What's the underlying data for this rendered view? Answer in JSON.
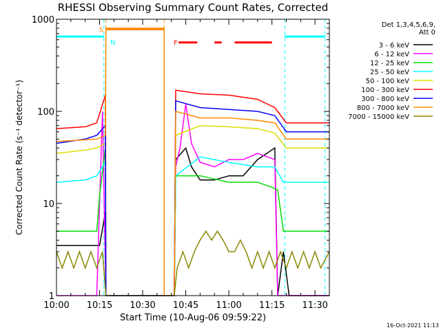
{
  "chart_data": {
    "type": "line",
    "title": "RHESSI Observing Summary Count Rates, Corrected",
    "xlabel": "Start Time (10-Aug-06 09:59:22)",
    "ylabel": "Corrected Count Rate (s⁻¹ detector⁻¹)",
    "y_scale": "log",
    "ylim": [
      1,
      1000
    ],
    "xlim_minutes": [
      0,
      95
    ],
    "x_ticks": [
      {
        "t": 0,
        "label": "10:00"
      },
      {
        "t": 15,
        "label": "10:15"
      },
      {
        "t": 30,
        "label": "10:30"
      },
      {
        "t": 45,
        "label": "10:45"
      },
      {
        "t": 60,
        "label": "11:00"
      },
      {
        "t": 75,
        "label": "11:15"
      },
      {
        "t": 90,
        "label": "11:30"
      }
    ],
    "y_ticks": [
      {
        "v": 1,
        "label": "1"
      },
      {
        "v": 10,
        "label": "10"
      },
      {
        "v": 100,
        "label": "100"
      },
      {
        "v": 1000,
        "label": "1000"
      }
    ],
    "legend_header": [
      "Det 1,3,4,5,6,9,",
      "Att 0"
    ],
    "series": [
      {
        "name": "3 - 6 keV",
        "color": "#000000",
        "points": [
          [
            0,
            3.5
          ],
          [
            15,
            3.5
          ],
          [
            17,
            8
          ],
          [
            17.2,
            1
          ],
          [
            41,
            1
          ],
          [
            41.5,
            30
          ],
          [
            45,
            40
          ],
          [
            47,
            25
          ],
          [
            50,
            18
          ],
          [
            55,
            18
          ],
          [
            60,
            20
          ],
          [
            65,
            20
          ],
          [
            70,
            30
          ],
          [
            76,
            40
          ],
          [
            77,
            1
          ],
          [
            79,
            3
          ],
          [
            81,
            1
          ],
          [
            95,
            1
          ]
        ]
      },
      {
        "name": "6 - 12 keV",
        "color": "#ff00ff",
        "points": [
          [
            0,
            1
          ],
          [
            14,
            1
          ],
          [
            16,
            100
          ],
          [
            17.2,
            1
          ],
          [
            41,
            1
          ],
          [
            41.5,
            25
          ],
          [
            43,
            40
          ],
          [
            45,
            120
          ],
          [
            47,
            45
          ],
          [
            50,
            28
          ],
          [
            55,
            25
          ],
          [
            60,
            30
          ],
          [
            65,
            30
          ],
          [
            70,
            35
          ],
          [
            76,
            30
          ],
          [
            77,
            1
          ],
          [
            95,
            1
          ]
        ]
      },
      {
        "name": "12 - 25 keV",
        "color": "#00dd00",
        "points": [
          [
            0,
            5
          ],
          [
            14,
            5
          ],
          [
            15,
            12
          ],
          [
            17,
            40
          ],
          [
            17.2,
            1
          ],
          [
            41,
            1
          ],
          [
            41.5,
            20
          ],
          [
            50,
            20
          ],
          [
            60,
            17
          ],
          [
            70,
            17
          ],
          [
            75,
            15
          ],
          [
            77,
            14
          ],
          [
            79,
            5
          ],
          [
            95,
            5
          ]
        ]
      },
      {
        "name": "25 - 50 keV",
        "color": "#00ffff",
        "points": [
          [
            0,
            17
          ],
          [
            10,
            18
          ],
          [
            14,
            20
          ],
          [
            17,
            28
          ],
          [
            17.2,
            1
          ],
          [
            41,
            1
          ],
          [
            41.5,
            20
          ],
          [
            50,
            32
          ],
          [
            60,
            28
          ],
          [
            70,
            25
          ],
          [
            76,
            25
          ],
          [
            79,
            17
          ],
          [
            95,
            17
          ]
        ]
      },
      {
        "name": "50 - 100 keV",
        "color": "#dddd00",
        "points": [
          [
            0,
            35
          ],
          [
            10,
            38
          ],
          [
            14,
            40
          ],
          [
            17,
            45
          ],
          [
            17.2,
            1
          ],
          [
            41,
            1
          ],
          [
            41.5,
            55
          ],
          [
            50,
            70
          ],
          [
            60,
            68
          ],
          [
            70,
            65
          ],
          [
            76,
            58
          ],
          [
            80,
            40
          ],
          [
            95,
            40
          ]
        ]
      },
      {
        "name": "100 - 300 keV",
        "color": "#ff0000",
        "points": [
          [
            0,
            65
          ],
          [
            10,
            68
          ],
          [
            14,
            75
          ],
          [
            17,
            150
          ],
          [
            17.2,
            1
          ],
          [
            41,
            1
          ],
          [
            41.5,
            170
          ],
          [
            50,
            155
          ],
          [
            60,
            150
          ],
          [
            70,
            135
          ],
          [
            76,
            110
          ],
          [
            80,
            75
          ],
          [
            95,
            75
          ]
        ]
      },
      {
        "name": "300 - 800 keV",
        "color": "#0000ff",
        "points": [
          [
            0,
            45
          ],
          [
            10,
            50
          ],
          [
            14,
            55
          ],
          [
            17,
            70
          ],
          [
            17.2,
            1
          ],
          [
            41,
            1
          ],
          [
            41.5,
            130
          ],
          [
            50,
            110
          ],
          [
            60,
            105
          ],
          [
            70,
            100
          ],
          [
            76,
            90
          ],
          [
            80,
            60
          ],
          [
            95,
            60
          ]
        ]
      },
      {
        "name": "800 - 7000 keV",
        "color": "#ff8800",
        "points": [
          [
            0,
            47
          ],
          [
            14,
            50
          ],
          [
            17,
            55
          ],
          [
            17.2,
            800
          ],
          [
            37.5,
            800
          ],
          [
            37.5,
            1
          ],
          [
            41,
            1
          ],
          [
            41.5,
            100
          ],
          [
            50,
            85
          ],
          [
            60,
            85
          ],
          [
            70,
            80
          ],
          [
            76,
            75
          ],
          [
            80,
            50
          ],
          [
            95,
            50
          ]
        ]
      },
      {
        "name": "7000 - 15000 keV",
        "color": "#888800",
        "points": [
          [
            0,
            3
          ],
          [
            2,
            2
          ],
          [
            4,
            3
          ],
          [
            6,
            2
          ],
          [
            8,
            3
          ],
          [
            10,
            2
          ],
          [
            12,
            3
          ],
          [
            14,
            2
          ],
          [
            16,
            3
          ],
          [
            17.2,
            1
          ],
          [
            41,
            1
          ],
          [
            42,
            2
          ],
          [
            44,
            3
          ],
          [
            46,
            2
          ],
          [
            48,
            3
          ],
          [
            50,
            4
          ],
          [
            52,
            5
          ],
          [
            54,
            4
          ],
          [
            56,
            5
          ],
          [
            58,
            4
          ],
          [
            60,
            3
          ],
          [
            62,
            3
          ],
          [
            64,
            4
          ],
          [
            66,
            3
          ],
          [
            68,
            2
          ],
          [
            70,
            3
          ],
          [
            72,
            2
          ],
          [
            74,
            3
          ],
          [
            76,
            2
          ],
          [
            78,
            3
          ],
          [
            80,
            2
          ],
          [
            82,
            3
          ],
          [
            84,
            2
          ],
          [
            86,
            3
          ],
          [
            88,
            2
          ],
          [
            90,
            3
          ],
          [
            92,
            2
          ],
          [
            95,
            3
          ]
        ]
      }
    ],
    "flags": [
      {
        "name": "N",
        "label": "N",
        "color": "#00ffff",
        "segments": [
          [
            0,
            16.5
          ],
          [
            79.5,
            93.5
          ]
        ],
        "level": 650,
        "ends": [
          16.5,
          79.5,
          93.5
        ]
      },
      {
        "name": "S",
        "label": "S",
        "color": "#ff8800",
        "segments": [
          [
            17.2,
            37.5
          ]
        ],
        "level": 780,
        "ends": [
          17.2,
          37.5
        ]
      },
      {
        "name": "F",
        "label": "F",
        "color": "#ff0000",
        "segments": [
          [
            42.5,
            49
          ],
          [
            55,
            57.5
          ],
          [
            62,
            75
          ]
        ],
        "level": 560,
        "ends": []
      }
    ]
  },
  "footer": {
    "generated": "16-Oct-2021 11:13"
  }
}
